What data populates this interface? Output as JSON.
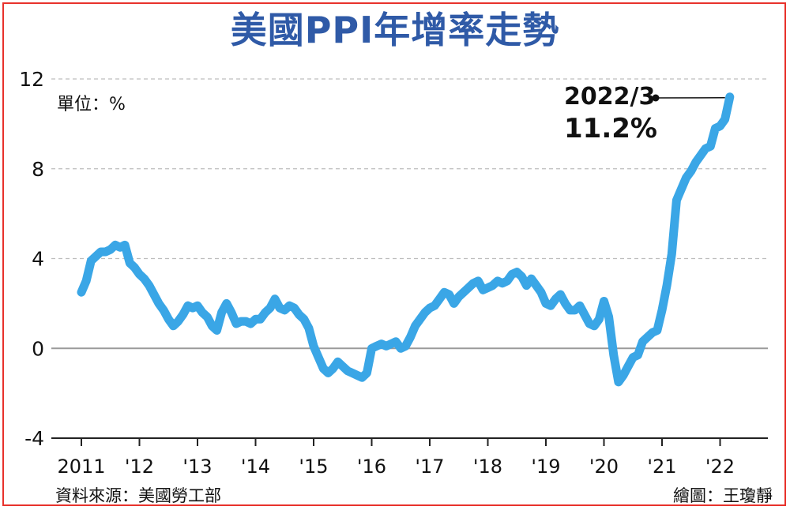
{
  "title": "美國PPI年增率走勢",
  "unit_label": "單位：%",
  "source": "資料來源：美國勞工部",
  "credit": "繪圖：王瓊靜",
  "annotation": {
    "date": "2022/3",
    "value": "11.2%"
  },
  "colors": {
    "line": "#3aa6e6",
    "title": "#2f5aa7",
    "frame": "#e8322c",
    "grid": "#bdbdbd"
  },
  "chart_data": {
    "type": "line",
    "title": "美國PPI年增率走勢",
    "ylabel": "單位：%",
    "ylim": [
      -4,
      12
    ],
    "yticks": [
      12,
      8,
      4,
      0,
      -4
    ],
    "grid": true,
    "x_tick_labels": [
      "2011",
      "'12",
      "'13",
      "'14",
      "'15",
      "'16",
      "'17",
      "'18",
      "'19",
      "'20",
      "'21",
      "'22"
    ],
    "series": [
      {
        "values": [
          2.5,
          3.0,
          3.9,
          4.1,
          4.3,
          4.3,
          4.4,
          4.6,
          4.5,
          4.6,
          3.8,
          3.6,
          3.3,
          3.1,
          2.8,
          2.4,
          2.0,
          1.7,
          1.3,
          1.0,
          1.2,
          1.5,
          1.9,
          1.8,
          1.9,
          1.6,
          1.4,
          1.0,
          0.8,
          1.6,
          2.0,
          1.6,
          1.1,
          1.2,
          1.2,
          1.1,
          1.3,
          1.3,
          1.6,
          1.8,
          2.2,
          1.8,
          1.7,
          1.9,
          1.8,
          1.5,
          1.3,
          0.9,
          0.1,
          -0.4,
          -0.9,
          -1.1,
          -0.9,
          -0.6,
          -0.8,
          -1.0,
          -1.1,
          -1.2,
          -1.3,
          -1.1,
          0.0,
          0.1,
          0.2,
          0.1,
          0.2,
          0.3,
          0.0,
          0.1,
          0.5,
          1.0,
          1.3,
          1.6,
          1.8,
          1.9,
          2.2,
          2.5,
          2.4,
          2.0,
          2.3,
          2.5,
          2.7,
          2.9,
          3.0,
          2.6,
          2.7,
          2.8,
          3.0,
          2.9,
          3.0,
          3.3,
          3.4,
          3.2,
          2.8,
          3.1,
          2.8,
          2.5,
          2.0,
          1.9,
          2.2,
          2.4,
          2.0,
          1.7,
          1.7,
          1.9,
          1.5,
          1.1,
          1.0,
          1.3,
          2.1,
          1.4,
          -0.3,
          -1.5,
          -1.2,
          -0.8,
          -0.4,
          -0.3,
          0.3,
          0.5,
          0.7,
          0.8,
          1.7,
          2.8,
          4.2,
          6.6,
          7.1,
          7.6,
          7.9,
          8.3,
          8.6,
          8.9,
          9.0,
          9.8,
          9.9,
          10.2,
          11.2
        ]
      }
    ]
  }
}
